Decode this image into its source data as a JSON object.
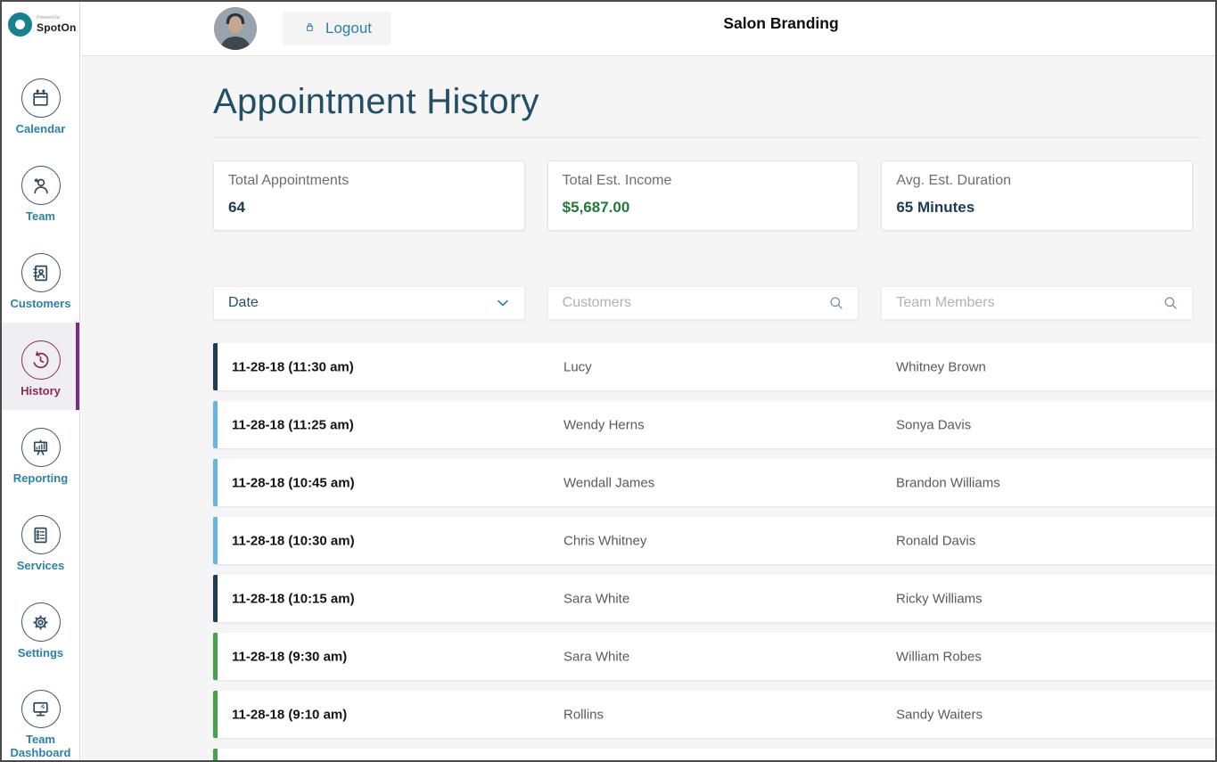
{
  "brand": {
    "powered_by": "Powered by",
    "name": "SpotOn"
  },
  "topbar": {
    "logout_label": "Logout",
    "title": "Salon Branding"
  },
  "sidebar": {
    "items": [
      {
        "label": "Calendar",
        "icon": "calendar-icon",
        "active": false
      },
      {
        "label": "Team",
        "icon": "team-icon",
        "active": false
      },
      {
        "label": "Customers",
        "icon": "customers-icon",
        "active": false
      },
      {
        "label": "History",
        "icon": "history-icon",
        "active": true
      },
      {
        "label": "Reporting",
        "icon": "reporting-icon",
        "active": false
      },
      {
        "label": "Services",
        "icon": "services-icon",
        "active": false
      },
      {
        "label": "Settings",
        "icon": "settings-icon",
        "active": false
      },
      {
        "label": "Team Dashboard",
        "icon": "team-dashboard-icon",
        "active": false
      }
    ]
  },
  "page": {
    "title": "Appointment History"
  },
  "stats": [
    {
      "label": "Total Appointments",
      "value": "64",
      "tone": "navy"
    },
    {
      "label": "Total Est. Income",
      "value": "$5,687.00",
      "tone": "green"
    },
    {
      "label": "Avg. Est. Duration",
      "value": "65 Minutes",
      "tone": "navy"
    }
  ],
  "filters": {
    "date_label": "Date",
    "customers_placeholder": "Customers",
    "team_placeholder": "Team Members"
  },
  "appointments": [
    {
      "datetime": "11-28-18 (11:30 am)",
      "customer": "Lucy",
      "team_member": "Whitney Brown",
      "accent": "dark"
    },
    {
      "datetime": "11-28-18 (11:25 am)",
      "customer": "Wendy Herns",
      "team_member": "Sonya Davis",
      "accent": "blue"
    },
    {
      "datetime": "11-28-18 (10:45 am)",
      "customer": "Wendall James",
      "team_member": "Brandon Williams",
      "accent": "blue"
    },
    {
      "datetime": "11-28-18 (10:30 am)",
      "customer": "Chris Whitney",
      "team_member": "Ronald Davis",
      "accent": "blue"
    },
    {
      "datetime": "11-28-18 (10:15 am)",
      "customer": "Sara White",
      "team_member": "Ricky Williams",
      "accent": "dark"
    },
    {
      "datetime": "11-28-18 (9:30 am)",
      "customer": "Sara White",
      "team_member": "William Robes",
      "accent": "green"
    },
    {
      "datetime": "11-28-18 (9:10 am)",
      "customer": "Rollins",
      "team_member": "Sandy Waiters",
      "accent": "green"
    },
    {
      "datetime": "",
      "customer": "",
      "team_member": "",
      "accent": "green"
    }
  ],
  "colors": {
    "brand_teal": "#16818f",
    "link_blue": "#2a82ab",
    "heading": "#234f66",
    "navy": "#1c3c52",
    "income_green": "#1e7b34",
    "active_purple": "#8d2960",
    "active_bar": "#7d2a8a",
    "accent_dark": "#1e3d52",
    "accent_blue": "#66b5e2",
    "accent_green": "#45a34a"
  }
}
